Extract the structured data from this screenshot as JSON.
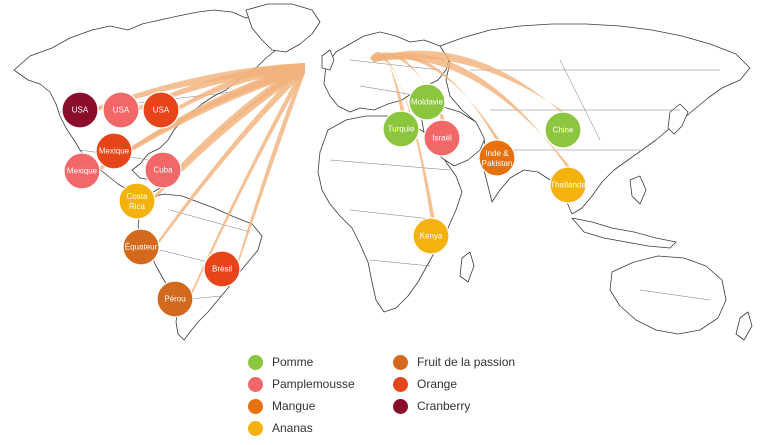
{
  "colors": {
    "pomme": "#8cc63f",
    "pamplemousse": "#f26768",
    "mangue": "#e8710f",
    "ananas": "#f4b20f",
    "fruit_passion": "#d2691d",
    "orange": "#e8441a",
    "cranberry": "#8a0e2c",
    "flow": "#f2b27d"
  },
  "origins": [
    {
      "id": "usa-cranberry",
      "label": "USA",
      "fruit": "cranberry"
    },
    {
      "id": "usa-pamplemousse",
      "label": "USA",
      "fruit": "pamplemousse"
    },
    {
      "id": "usa-orange",
      "label": "USA",
      "fruit": "orange"
    },
    {
      "id": "mexique-orange",
      "label": "Mexique",
      "fruit": "orange"
    },
    {
      "id": "mexique-pamplemousse",
      "label": "Mexique",
      "fruit": "pamplemousse"
    },
    {
      "id": "cuba",
      "label": "Cuba",
      "fruit": "pamplemousse"
    },
    {
      "id": "costa-rica",
      "label": "Costa Rica",
      "fruit": "ananas"
    },
    {
      "id": "equateur",
      "label": "Équateur",
      "fruit": "fruit_passion"
    },
    {
      "id": "bresil",
      "label": "Brésil",
      "fruit": "orange"
    },
    {
      "id": "perou",
      "label": "Pérou",
      "fruit": "fruit_passion"
    },
    {
      "id": "moldavie",
      "label": "Moldavie",
      "fruit": "pomme"
    },
    {
      "id": "turquie",
      "label": "Turquie",
      "fruit": "pomme"
    },
    {
      "id": "israel",
      "label": "Israël",
      "fruit": "pamplemousse"
    },
    {
      "id": "inde-pakistan",
      "label": "Inde & Pakistan",
      "fruit": "mangue"
    },
    {
      "id": "chine",
      "label": "Chine",
      "fruit": "pomme"
    },
    {
      "id": "thailande",
      "label": "Thaïlande",
      "fruit": "ananas"
    },
    {
      "id": "kenya",
      "label": "Kenya",
      "fruit": "ananas"
    }
  ],
  "legend": [
    {
      "key": "pomme",
      "label": "Pomme"
    },
    {
      "key": "pamplemousse",
      "label": "Pamplemousse"
    },
    {
      "key": "mangue",
      "label": "Mangue"
    },
    {
      "key": "ananas",
      "label": "Ananas"
    },
    {
      "key": "fruit_passion",
      "label": "Fruit de la passion"
    },
    {
      "key": "orange",
      "label": "Orange"
    },
    {
      "key": "cranberry",
      "label": "Cranberry"
    }
  ]
}
